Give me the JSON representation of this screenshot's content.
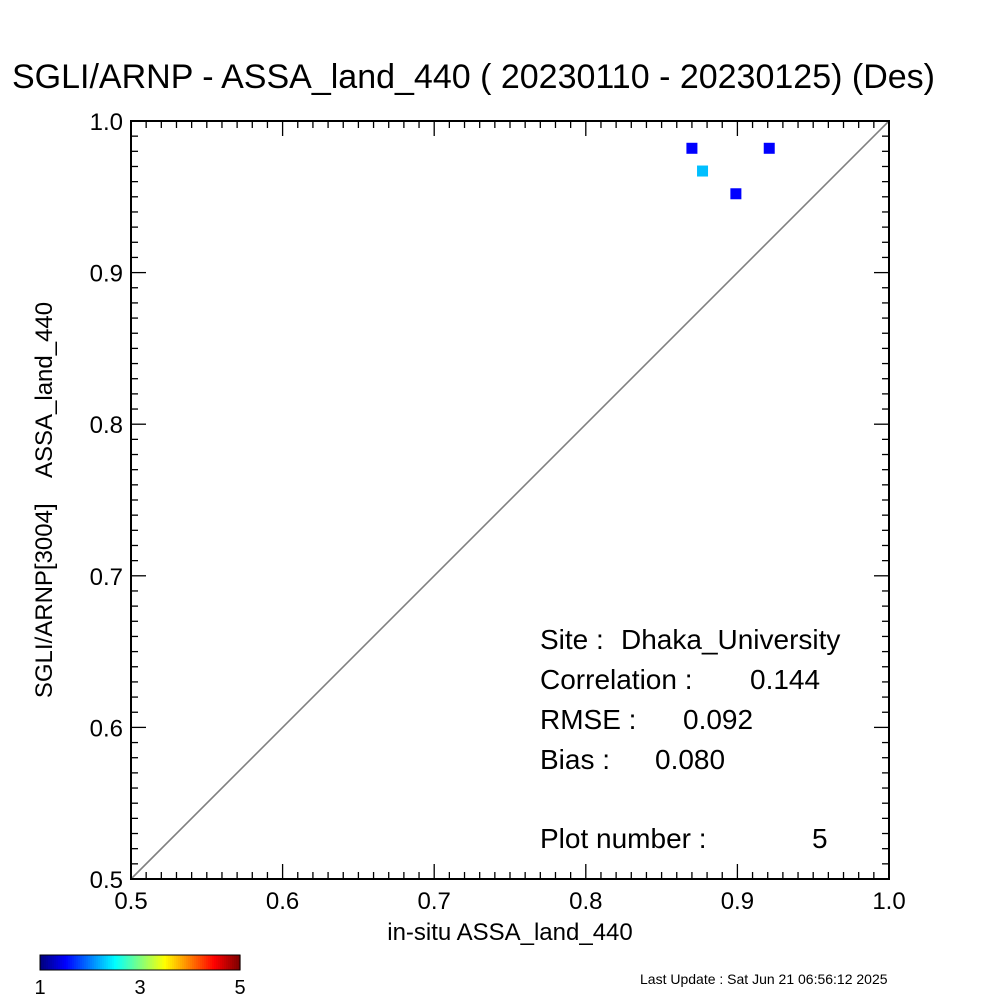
{
  "chart_data": {
    "type": "scatter",
    "title": "SGLI/ARNP - ASSA_land_440 ( 20230110 - 20230125) (Des)",
    "xlabel": "in-situ ASSA_land_440",
    "ylabel": "SGLI/ARNP[3004]    ASSA_land_440",
    "xlim": [
      0.5,
      1.0
    ],
    "ylim": [
      0.5,
      1.0
    ],
    "x_ticks": [
      "0.5",
      "0.6",
      "0.7",
      "0.8",
      "0.9",
      "1.0"
    ],
    "y_ticks": [
      "0.5",
      "0.6",
      "0.7",
      "0.8",
      "0.9",
      "1.0"
    ],
    "one_to_one_line": true,
    "grid": false,
    "points": [
      {
        "x": 0.87,
        "y": 0.982,
        "count": 1
      },
      {
        "x": 0.877,
        "y": 0.967,
        "count": 2
      },
      {
        "x": 0.899,
        "y": 0.952,
        "count": 1
      },
      {
        "x": 0.921,
        "y": 0.982,
        "count": 1
      }
    ],
    "colorbar": {
      "min": 1,
      "max": 5,
      "labels": [
        "1",
        "3",
        "5"
      ],
      "colormap": "jet"
    },
    "stats": {
      "site_label": "Site :",
      "site_value": "Dhaka_University",
      "correlation_label": "Correlation :",
      "correlation_value": "0.144",
      "rmse_label": "RMSE :",
      "rmse_value": "0.092",
      "bias_label": "Bias :",
      "bias_value": "0.080",
      "plot_number_label": "Plot number :",
      "plot_number_value": "5"
    },
    "footer": "Last Update : Sat Jun 21 06:56:12 2025",
    "colors": {
      "diagonal": "#808080",
      "axes": "#000000"
    }
  }
}
